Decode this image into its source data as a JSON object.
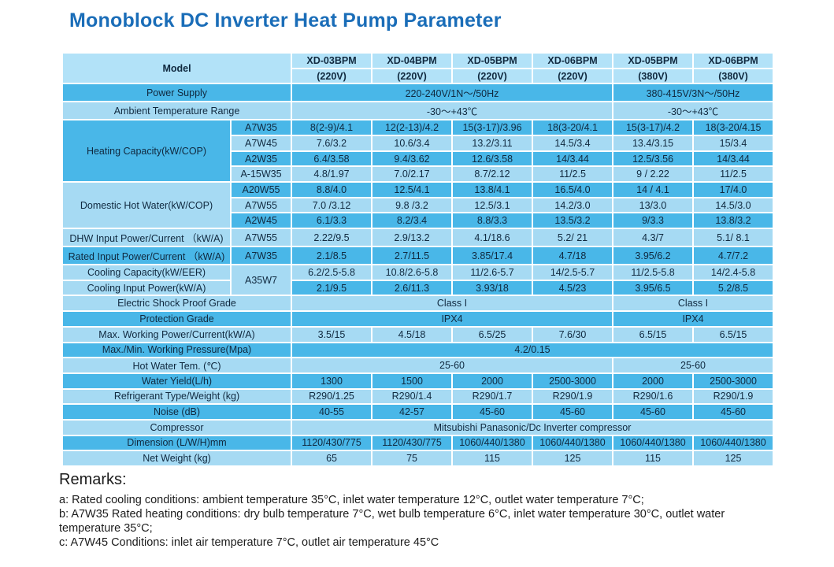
{
  "page": {
    "title": "Monoblock DC Inverter Heat Pump Parameter"
  },
  "colors": {
    "title_text": "#1a6db8",
    "dark_cell": "#49b7e8",
    "light_cell": "#a6daf3",
    "header_cell": "#b2e2f8",
    "cell_text": "#10293f",
    "gridline": "#ffffff"
  },
  "table": {
    "model_header": {
      "label": "Model",
      "columns": [
        {
          "name": "XD-03BPM",
          "voltage": "(220V)"
        },
        {
          "name": "XD-04BPM",
          "voltage": "(220V)"
        },
        {
          "name": "XD-05BPM",
          "voltage": "(220V)"
        },
        {
          "name": "XD-06BPM",
          "voltage": "(220V)"
        },
        {
          "name": "XD-05BPM",
          "voltage": "(380V)"
        },
        {
          "name": "XD-06BPM",
          "voltage": "(380V)"
        }
      ]
    },
    "power_supply": {
      "label": "Power Supply",
      "group_values": [
        "220-240V/1N～/50Hz",
        "380-415V/3N～/50Hz"
      ]
    },
    "ambient": {
      "label": "Ambient Temperature Range",
      "group_values": [
        "-30～+43℃",
        "-30～+43℃"
      ]
    },
    "heating_capacity": {
      "label": "Heating Capacity(kW/COP)",
      "rows": [
        {
          "condition": "A7W35",
          "values": [
            "8(2-9)/4.1",
            "12(2-13)/4.2",
            "15(3-17)/3.96",
            "18(3-20/4.1",
            "15(3-17)/4.2",
            "18(3-20/4.15"
          ]
        },
        {
          "condition": "A7W45",
          "values": [
            "7.6/3.2",
            "10.6/3.4",
            "13.2/3.11",
            "14.5/3.4",
            "13.4/3.15",
            "15/3.4"
          ]
        },
        {
          "condition": "A2W35",
          "values": [
            "6.4/3.58",
            "9.4/3.62",
            "12.6/3.58",
            "14/3.44",
            "12.5/3.56",
            "14/3.44"
          ]
        },
        {
          "condition": "A-15W35",
          "values": [
            "4.8/1.97",
            "7.0/2.17",
            "8.7/2.12",
            "11/2.5",
            "9 / 2.22",
            "11/2.5"
          ]
        }
      ]
    },
    "domestic_hot_water": {
      "label": "Domestic Hot Water(kW/COP)",
      "rows": [
        {
          "condition": "A20W55",
          "values": [
            "8.8/4.0",
            "12.5/4.1",
            "13.8/4.1",
            "16.5/4.0",
            "14 / 4.1",
            "17/4.0"
          ]
        },
        {
          "condition": "A7W55",
          "values": [
            "7.0 /3.12",
            "9.8 /3.2",
            "12.5/3.1",
            "14.2/3.0",
            "13/3.0",
            "14.5/3.0"
          ]
        },
        {
          "condition": "A2W45",
          "values": [
            "6.1/3.3",
            "8.2/3.4",
            "8.8/3.3",
            "13.5/3.2",
            "9/3.3",
            "13.8/3.2"
          ]
        }
      ]
    },
    "dhw_input": {
      "label": "DHW Input Power/Current （kW/A)",
      "condition": "A7W55",
      "values": [
        "2.22/9.5",
        "2.9/13.2",
        "4.1/18.6",
        "5.2/ 21",
        "4.3/7",
        "5.1/ 8.1"
      ]
    },
    "rated_input": {
      "label": "Rated Input Power/Current （kW/A)",
      "condition": "A7W35",
      "values": [
        "2.1/8.5",
        "2.7/11.5",
        "3.85/17.4",
        "4.7/18",
        "3.95/6.2",
        "4.7/7.2"
      ]
    },
    "cooling": {
      "condition": "A35W7",
      "capacity": {
        "label": "Cooling Capacity(kW/EER)",
        "values": [
          "6.2/2.5-5.8",
          "10.8/2.6-5.8",
          "11/2.6-5.7",
          "14/2.5-5.7",
          "11/2.5-5.8",
          "14/2.4-5.8"
        ]
      },
      "input": {
        "label": "Cooling Input Power(kW/A)",
        "values": [
          "2.1/9.5",
          "2.6/11.3",
          "3.93/18",
          "4.5/23",
          "3.95/6.5",
          "5.2/8.5"
        ]
      }
    },
    "electric_shock": {
      "label": "Electric Shock Proof Grade",
      "group_values": [
        "Class I",
        "Class I"
      ]
    },
    "protection": {
      "label": "Protection Grade",
      "group_values": [
        "IPX4",
        "IPX4"
      ]
    },
    "max_working": {
      "label": "Max. Working Power/Current(kW/A)",
      "values": [
        "3.5/15",
        "4.5/18",
        "6.5/25",
        "7.6/30",
        "6.5/15",
        "6.5/15"
      ]
    },
    "pressure": {
      "label": "Max./Min. Working Pressure(Mpa)",
      "full_value": "4.2/0.15"
    },
    "hot_water_tem": {
      "label": "Hot Water Tem. (℃)",
      "group_values": [
        "25-60",
        "25-60"
      ]
    },
    "water_yield": {
      "label": "Water Yield(L/h)",
      "values": [
        "1300",
        "1500",
        "2000",
        "2500-3000",
        "2000",
        "2500-3000"
      ]
    },
    "refrigerant": {
      "label": "Refrigerant Type/Weight (kg)",
      "values": [
        "R290/1.25",
        "R290/1.4",
        "R290/1.7",
        "R290/1.9",
        "R290/1.6",
        "R290/1.9"
      ]
    },
    "noise": {
      "label": "Noise (dB)",
      "values": [
        "40-55",
        "42-57",
        "45-60",
        "45-60",
        "45-60",
        "45-60"
      ]
    },
    "compressor": {
      "label": "Compressor",
      "full_value": "Mitsubishi Panasonic/Dc Inverter compressor"
    },
    "dimension": {
      "label": "Dimension (L/W/H)mm",
      "values": [
        "1120/430/775",
        "1120/430/775",
        "1060/440/1380",
        "1060/440/1380",
        "1060/440/1380",
        "1060/440/1380"
      ]
    },
    "net_weight": {
      "label": "Net Weight (kg)",
      "values": [
        "65",
        "75",
        "115",
        "125",
        "115",
        "125"
      ]
    }
  },
  "remarks": {
    "title": "Remarks:",
    "lines": [
      "a: Rated cooling conditions: ambient temperature 35°C, inlet water temperature 12°C, outlet water temperature 7°C;",
      "b: A7W35 Rated heating conditions: dry bulb temperature 7°C, wet bulb temperature 6°C, inlet water temperature 30°C, outlet water temperature 35°C;",
      "c: A7W45 Conditions: inlet air temperature 7°C, outlet air temperature 45°C"
    ]
  }
}
